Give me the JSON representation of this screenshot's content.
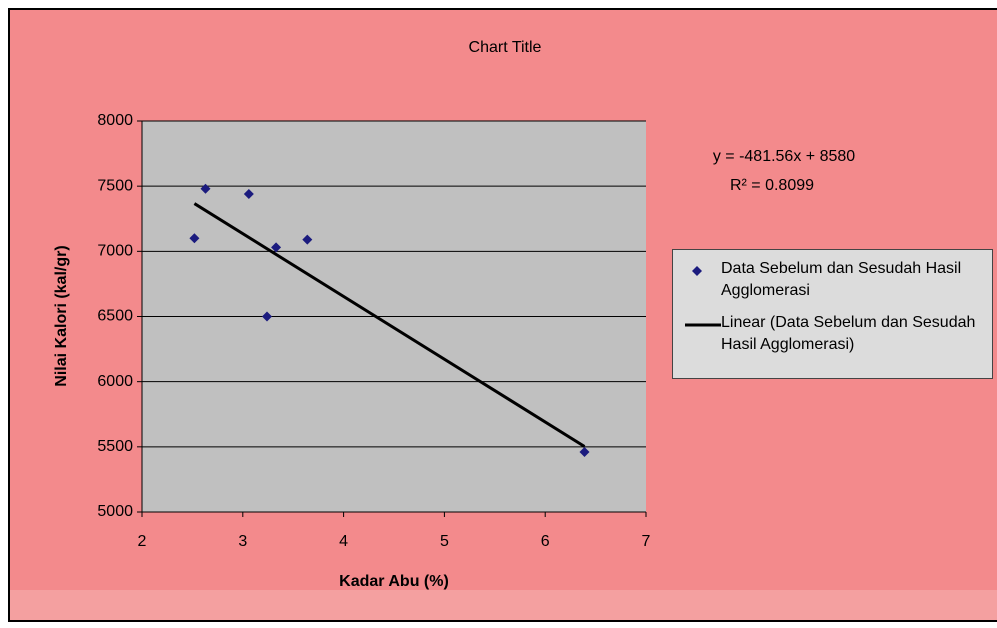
{
  "chart_data": {
    "type": "scatter",
    "title": "Chart Title",
    "x_label": "Kadar Abu (%)",
    "y_label": "Nilai Kalori (kal/gr)",
    "series": [
      {
        "name": "Data Sebelum dan Sesudah Hasil Agglomerasi",
        "color": "#1b1b7e",
        "x": [
          2.52,
          2.63,
          3.06,
          3.33,
          3.64,
          3.24,
          6.39
        ],
        "values": [
          7100,
          7480,
          7440,
          7030,
          7090,
          6500,
          5460
        ]
      }
    ],
    "trendline": {
      "name": "Linear (Data Sebelum dan Sesudah Hasil Agglomerasi)",
      "color": "#000000",
      "slope": -481.56,
      "intercept": 8580,
      "equation": "y = -481.56x + 8580",
      "r_squared_label": "R² = 0.8099"
    },
    "xlim": [
      2,
      7
    ],
    "xticks": [
      2,
      3,
      4,
      5,
      6,
      7
    ],
    "ylim": [
      5000,
      8000
    ],
    "yticks": [
      5000,
      5500,
      6000,
      6500,
      7000,
      7500,
      8000
    ],
    "grid": true
  }
}
